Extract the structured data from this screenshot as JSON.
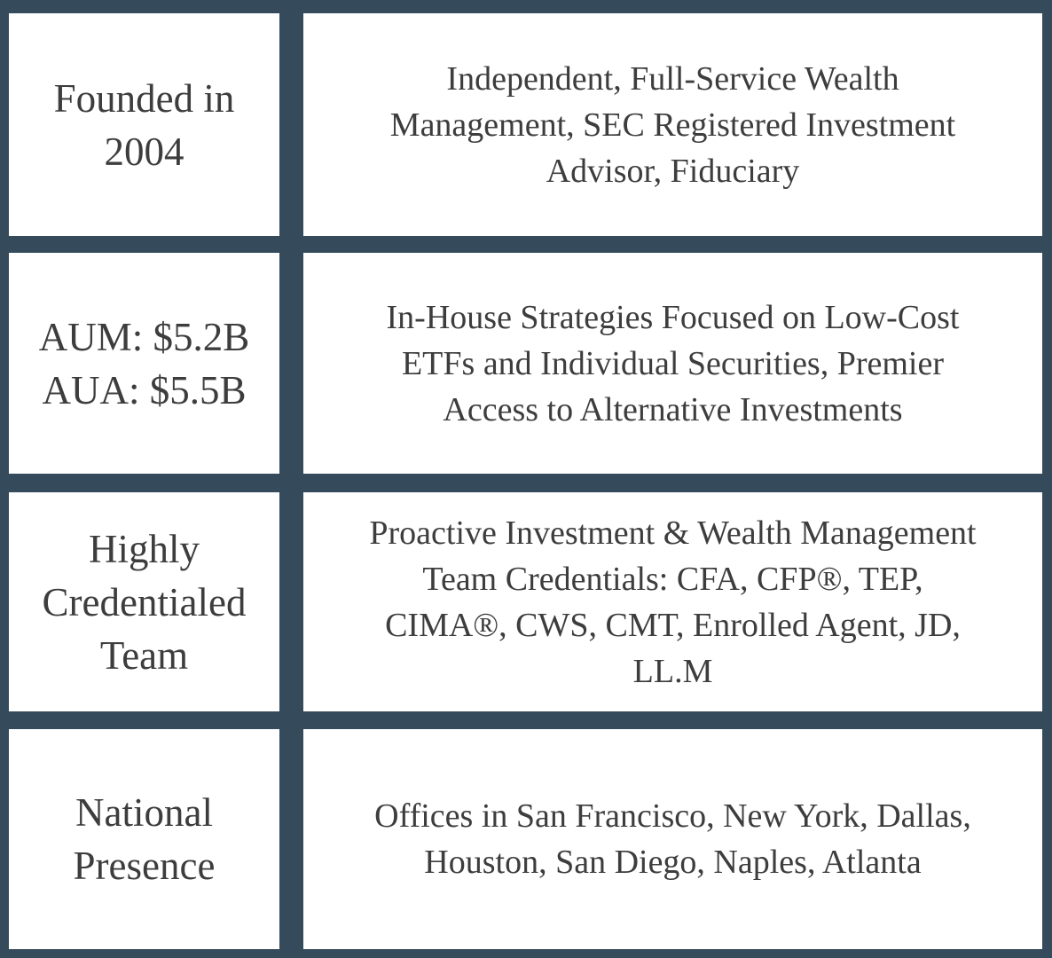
{
  "rows": [
    {
      "left_lines": [
        "Founded in",
        "2004"
      ],
      "right_lines": [
        "Independent, Full-Service Wealth",
        "Management, SEC Registered Investment",
        "Advisor, Fiduciary"
      ]
    },
    {
      "left_lines": [
        "AUM: $5.2B",
        "AUA: $5.5B"
      ],
      "right_lines": [
        "In-House Strategies Focused on Low-Cost",
        "ETFs and Individual Securities, Premier",
        "Access to Alternative Investments"
      ]
    },
    {
      "left_lines": [
        "Highly",
        "Credentialed",
        "Team"
      ],
      "right_lines": [
        "Proactive Investment & Wealth Management",
        "Team Credentials: CFA, CFP®, TEP,",
        "CIMA®, CWS, CMT, Enrolled Agent, JD,",
        "LL.M"
      ]
    },
    {
      "left_lines": [
        "National",
        "Presence"
      ],
      "right_lines": [
        "Offices in San Francisco, New York, Dallas,",
        "Houston, San Diego, Naples, Atlanta"
      ]
    }
  ],
  "colors": {
    "background": "#354b5b",
    "cell": "#ffffff",
    "text": "#3d3d3d"
  }
}
